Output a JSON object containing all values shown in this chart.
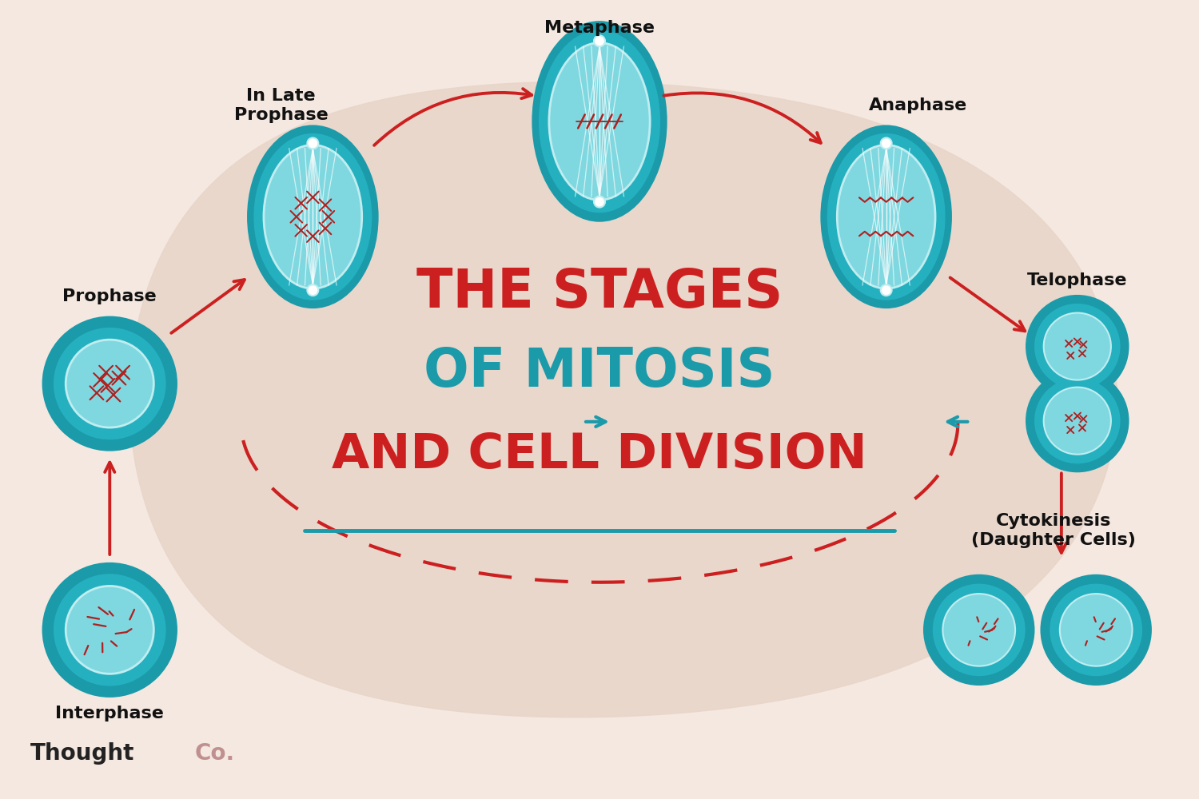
{
  "bg_color": "#f5e8e0",
  "blob_color": "#e8d5c8",
  "teal_outer": "#1b9aaa",
  "teal_mid": "#25b0c0",
  "teal_inner_bg": "#7fd8e0",
  "teal_light_inner": "#c0edf0",
  "chrom_color": "#b02020",
  "red_arrow": "#cc2020",
  "teal_arrow": "#1b9aaa",
  "title1": "THE STAGES",
  "title2": "OF MITOSIS",
  "title3": "AND CELL DIVISION",
  "brand_black": "Thought",
  "brand_pink": "Co.",
  "label_color": "#111111",
  "label_fontsize": 16,
  "title1_fontsize": 48,
  "title2_fontsize": 48,
  "title3_fontsize": 44
}
